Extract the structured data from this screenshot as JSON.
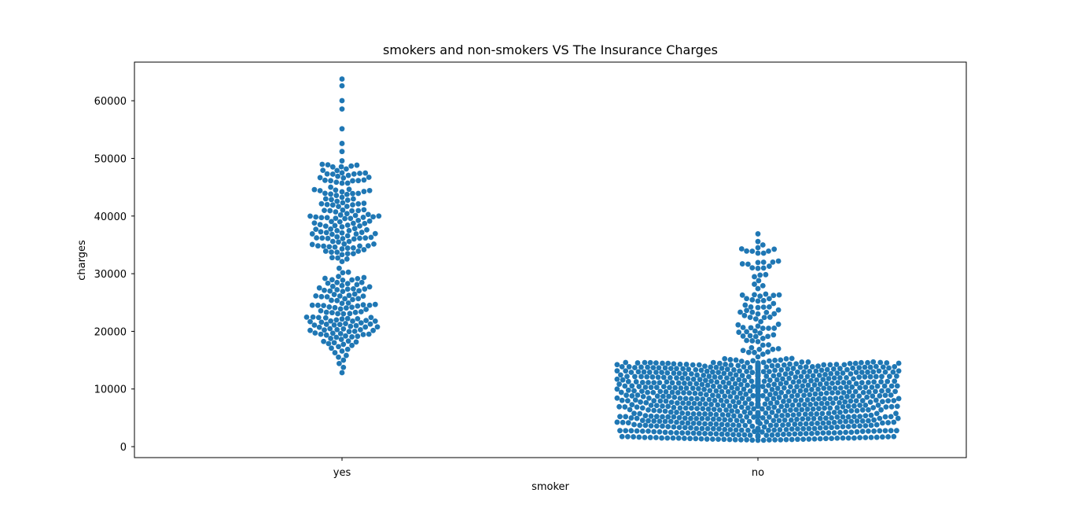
{
  "chart_data": {
    "type": "scatter",
    "subtype": "swarm",
    "title": "smokers and non-smokers VS The Insurance Charges",
    "xlabel": "smoker",
    "ylabel": "charges",
    "categories": [
      "yes",
      "no"
    ],
    "yticks": [
      0,
      10000,
      20000,
      30000,
      40000,
      50000,
      60000
    ],
    "ylim": [
      -1900,
      66700
    ],
    "point_color": "#1f77b4",
    "grid": false,
    "legend": "none",
    "series": [
      {
        "category": "yes",
        "approx_count": 274,
        "values": [
          12829,
          13747,
          14419,
          15006,
          15518,
          15820,
          16297,
          16577,
          16884,
          17081,
          17352,
          17560,
          17748,
          17879,
          18033,
          18157,
          18246,
          18310,
          18608,
          18767,
          18963,
          19040,
          19144,
          19199,
          19350,
          19444,
          19496,
          19515,
          19594,
          19673,
          19719,
          19964,
          20009,
          20149,
          20167,
          20234,
          20277,
          20296,
          20420,
          20462,
          20709,
          20745,
          20773,
          20878,
          20984,
          21082,
          21098,
          21195,
          21223,
          21259,
          21348,
          21472,
          21595,
          21677,
          21771,
          21774,
          21797,
          21880,
          21978,
          22144,
          22192,
          22218,
          22331,
          22395,
          22412,
          22462,
          22478,
          23045,
          23065,
          23082,
          23241,
          23288,
          23306,
          23401,
          23568,
          23807,
          23887,
          24059,
          24106,
          24180,
          24227,
          24393,
          24476,
          24513,
          24520,
          24535,
          24603,
          24667,
          24869,
          24915,
          25333,
          25382,
          25517,
          25656,
          25678,
          25992,
          26018,
          26109,
          26125,
          26140,
          26236,
          26392,
          26467,
          26926,
          27000,
          27037,
          27117,
          27218,
          27322,
          27346,
          27375,
          27534,
          27724,
          27808,
          27941,
          28101,
          28287,
          28340,
          28468,
          28476,
          28868,
          28923,
          28950,
          29141,
          29186,
          29330,
          29523,
          30166,
          30260,
          30942,
          32108,
          32548,
          32734,
          32787,
          33307,
          33475,
          33471,
          33732,
          33750,
          33900,
          33907,
          34166,
          34303,
          34439,
          34472,
          34617,
          34672,
          34779,
          34806,
          34828,
          34838,
          35069,
          35147,
          35160,
          35491,
          35585,
          35595,
          36021,
          36085,
          36124,
          36149,
          36189,
          36197,
          36219,
          36307,
          36397,
          36580,
          36837,
          36898,
          36910,
          36950,
          37079,
          37133,
          37165,
          37270,
          37465,
          37484,
          37607,
          37701,
          37742,
          37829,
          38126,
          38245,
          38282,
          38344,
          38415,
          38511,
          38709,
          38746,
          38792,
          38998,
          39047,
          39125,
          39241,
          39556,
          39597,
          39611,
          39725,
          39727,
          39774,
          39836,
          39871,
          39983,
          40003,
          40103,
          40182,
          40273,
          40419,
          40720,
          40904,
          40932,
          40941,
          40974,
          41034,
          41097,
          41661,
          41676,
          41919,
          41949,
          41999,
          42112,
          42124,
          42211,
          42303,
          42560,
          42760,
          42856,
          42969,
          42983,
          43254,
          43578,
          43753,
          43813,
          43896,
          43921,
          43943,
          44202,
          44260,
          44400,
          44423,
          44501,
          44585,
          44641,
          45008,
          45702,
          45710,
          45863,
          46113,
          46130,
          46151,
          46200,
          46255,
          46599,
          46661,
          46718,
          46889,
          47055,
          47269,
          47291,
          47305,
          47403,
          47462,
          47497,
          47896,
          47928,
          48173,
          48517,
          48549,
          48675,
          48824,
          48885,
          48970,
          49577,
          51195,
          52591,
          55135,
          58571,
          60021,
          62593,
          63770
        ]
      },
      {
        "category": "no",
        "approx_count": 1064,
        "value_range": [
          1121,
          36910
        ],
        "dense_band": [
          1100,
          14600
        ],
        "notable_values": [
          1121,
          2000,
          5000,
          8000,
          11000,
          14000,
          14600,
          15000,
          17000,
          19000,
          21000,
          23000,
          25000,
          27000,
          28500,
          30000,
          32500,
          35000,
          36500,
          36910
        ]
      }
    ]
  }
}
